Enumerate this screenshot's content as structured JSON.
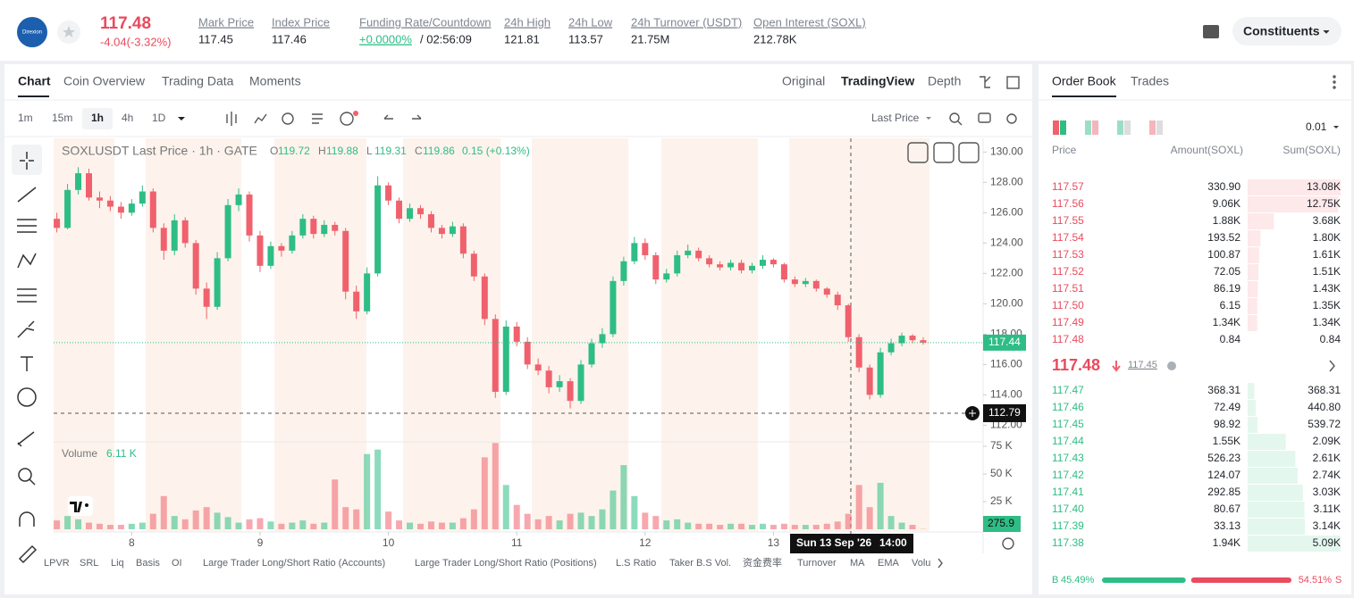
{
  "header": {
    "logo": "Direxion",
    "price": "117.48",
    "change": "-4.04(-3.32%)",
    "stats": [
      {
        "label": "Mark Price",
        "value": "117.45"
      },
      {
        "label": "Index Price",
        "value": "117.46"
      },
      {
        "label": "Funding Rate/Countdown",
        "value": "+0.0000%",
        "extra": "/ 02:56:09"
      },
      {
        "label": "24h High",
        "value": "121.81"
      },
      {
        "label": "24h Low",
        "value": "113.57"
      },
      {
        "label": "24h Turnover (USDT)",
        "value": "21.75M"
      },
      {
        "label": "Open Interest (SOXL)",
        "value": "212.78K"
      }
    ],
    "button": "Constituents"
  },
  "tabs": [
    "Chart",
    "Coin Overview",
    "Trading Data",
    "Moments"
  ],
  "views": [
    "Original",
    "TradingView",
    "Depth"
  ],
  "intervals": [
    "1m",
    "15m",
    "1h",
    "4h",
    "1D"
  ],
  "price_source": "Last Price",
  "indicators": [
    "LPVR",
    "SRL",
    "Liq",
    "Basis",
    "OI",
    "Large Trader Long/Short Ratio (Accounts)",
    "Large Trader Long/Short Ratio (Positions)",
    "L.S Ratio",
    "Taker B.S Vol.",
    "资金费率",
    "Turnover",
    "MA",
    "EMA",
    "Volu"
  ],
  "chart_data": {
    "type": "candlestick",
    "title": "SOXLUSDT Last Price · 1h · GATE",
    "ohlc": [
      {
        "label": "O",
        "value": "119.72"
      },
      {
        "label": "H",
        "value": "119.88"
      },
      {
        "label": "L",
        "value": "119.31"
      },
      {
        "label": "C",
        "value": "119.86"
      }
    ],
    "change": "0.15 (+0.13%)",
    "up_color": "#2ebd85",
    "down_color": "#f0616d",
    "candles": [
      [
        125.6,
        126.0,
        124.7,
        125.0
      ],
      [
        125.0,
        127.9,
        124.9,
        127.5
      ],
      [
        127.5,
        129.0,
        127.2,
        128.6
      ],
      [
        128.6,
        128.9,
        126.8,
        127.0
      ],
      [
        127.0,
        127.4,
        126.3,
        126.8
      ],
      [
        126.8,
        127.1,
        126.1,
        126.4
      ],
      [
        126.4,
        126.7,
        125.6,
        126.0
      ],
      [
        126.0,
        126.9,
        125.8,
        126.6
      ],
      [
        126.6,
        127.8,
        126.4,
        127.4
      ],
      [
        127.4,
        127.6,
        124.7,
        125.0
      ],
      [
        125.0,
        125.3,
        122.9,
        123.5
      ],
      [
        123.5,
        125.9,
        123.2,
        125.5
      ],
      [
        125.5,
        125.7,
        123.7,
        124.0
      ],
      [
        124.0,
        124.2,
        120.6,
        121.0
      ],
      [
        121.0,
        121.4,
        119.0,
        119.8
      ],
      [
        119.8,
        123.4,
        119.6,
        123.0
      ],
      [
        123.0,
        126.9,
        122.8,
        126.5
      ],
      [
        126.5,
        127.6,
        126.1,
        127.2
      ],
      [
        127.2,
        127.4,
        124.1,
        124.5
      ],
      [
        124.5,
        124.8,
        122.1,
        122.5
      ],
      [
        122.5,
        124.1,
        122.3,
        123.8
      ],
      [
        123.8,
        124.0,
        123.1,
        123.5
      ],
      [
        123.5,
        124.8,
        123.3,
        124.5
      ],
      [
        124.5,
        125.9,
        124.3,
        125.6
      ],
      [
        125.6,
        125.8,
        124.3,
        124.6
      ],
      [
        124.6,
        125.5,
        124.4,
        125.2
      ],
      [
        125.2,
        125.4,
        124.5,
        124.8
      ],
      [
        124.8,
        125.0,
        120.3,
        120.8
      ],
      [
        120.8,
        121.2,
        119.0,
        119.5
      ],
      [
        119.5,
        122.4,
        119.3,
        122.0
      ],
      [
        122.0,
        128.4,
        121.8,
        127.8
      ],
      [
        127.8,
        128.0,
        126.5,
        126.8
      ],
      [
        126.8,
        127.0,
        125.3,
        125.6
      ],
      [
        125.6,
        126.6,
        125.4,
        126.3
      ],
      [
        126.3,
        126.5,
        125.6,
        125.9
      ],
      [
        125.9,
        126.1,
        124.7,
        125.0
      ],
      [
        125.0,
        125.2,
        124.3,
        124.6
      ],
      [
        124.6,
        125.4,
        124.4,
        125.1
      ],
      [
        125.1,
        125.3,
        123.0,
        123.3
      ],
      [
        123.3,
        123.5,
        121.5,
        121.8
      ],
      [
        121.8,
        122.0,
        118.6,
        119.0
      ],
      [
        119.0,
        119.3,
        113.8,
        114.2
      ],
      [
        114.2,
        118.9,
        114.0,
        118.5
      ],
      [
        118.5,
        118.8,
        117.2,
        117.5
      ],
      [
        117.5,
        117.8,
        115.7,
        116.0
      ],
      [
        116.0,
        116.4,
        115.3,
        115.6
      ],
      [
        115.6,
        115.9,
        114.1,
        114.5
      ],
      [
        114.5,
        115.3,
        114.2,
        114.9
      ],
      [
        114.9,
        115.1,
        113.1,
        113.6
      ],
      [
        113.6,
        116.3,
        113.4,
        116.0
      ],
      [
        116.0,
        117.7,
        115.8,
        117.4
      ],
      [
        117.4,
        118.4,
        117.1,
        118.0
      ],
      [
        118.0,
        121.8,
        117.8,
        121.5
      ],
      [
        121.5,
        123.1,
        121.2,
        122.8
      ],
      [
        122.8,
        124.4,
        122.6,
        124.0
      ],
      [
        124.0,
        124.3,
        122.9,
        123.2
      ],
      [
        123.2,
        123.4,
        121.3,
        121.6
      ],
      [
        121.6,
        122.3,
        121.4,
        122.0
      ],
      [
        122.0,
        123.5,
        121.8,
        123.2
      ],
      [
        123.2,
        123.9,
        123.0,
        123.5
      ],
      [
        123.5,
        123.7,
        122.8,
        123.0
      ],
      [
        123.0,
        123.2,
        122.4,
        122.6
      ],
      [
        122.6,
        122.8,
        122.2,
        122.4
      ],
      [
        122.4,
        122.9,
        122.2,
        122.7
      ],
      [
        122.7,
        122.9,
        122.0,
        122.2
      ],
      [
        122.2,
        122.7,
        122.0,
        122.5
      ],
      [
        122.5,
        123.2,
        122.3,
        122.9
      ],
      [
        122.9,
        123.0,
        122.4,
        122.6
      ],
      [
        122.6,
        122.7,
        121.4,
        121.6
      ],
      [
        121.6,
        121.8,
        121.1,
        121.3
      ],
      [
        121.3,
        121.7,
        121.1,
        121.5
      ],
      [
        121.5,
        121.6,
        120.8,
        121.0
      ],
      [
        121.0,
        121.1,
        120.4,
        120.6
      ],
      [
        120.6,
        120.8,
        119.6,
        119.9
      ],
      [
        119.9,
        120.0,
        117.5,
        117.8
      ],
      [
        117.8,
        118.0,
        115.5,
        115.8
      ],
      [
        115.8,
        116.0,
        113.7,
        114.0
      ],
      [
        114.0,
        117.1,
        113.8,
        116.8
      ],
      [
        116.8,
        117.7,
        116.6,
        117.4
      ],
      [
        117.4,
        118.1,
        117.2,
        117.9
      ],
      [
        117.9,
        118.0,
        117.4,
        117.6
      ],
      [
        117.6,
        117.8,
        117.3,
        117.44
      ]
    ],
    "volumes": [
      8000,
      12000,
      9000,
      6000,
      5000,
      4000,
      4000,
      5000,
      6000,
      14000,
      30000,
      12000,
      9000,
      17000,
      20000,
      15000,
      11000,
      6000,
      9000,
      10000,
      7000,
      5000,
      6000,
      8000,
      5000,
      6000,
      45000,
      20000,
      18000,
      68000,
      72000,
      16000,
      8000,
      6000,
      5000,
      7000,
      6000,
      6000,
      10000,
      18000,
      65000,
      78000,
      40000,
      22000,
      14000,
      9000,
      12000,
      8000,
      14000,
      15000,
      12000,
      18000,
      35000,
      58000,
      30000,
      15000,
      12000,
      8000,
      9000,
      6000,
      5000,
      5000,
      4000,
      5000,
      5000,
      4000,
      5000,
      4000,
      5000,
      4000,
      4000,
      4000,
      5000,
      7000,
      14000,
      40000,
      20000,
      42000,
      12000,
      6000,
      4000,
      275.9
    ],
    "xlim": [
      -0.3,
      86.6
    ],
    "xticks": [
      {
        "value": 7,
        "label": "8"
      },
      {
        "value": 19,
        "label": "9"
      },
      {
        "value": 31,
        "label": "10"
      },
      {
        "value": 43,
        "label": "11"
      },
      {
        "value": 55,
        "label": "12"
      },
      {
        "value": 67,
        "label": "13"
      }
    ],
    "ylim": [
      111.2,
      130.9
    ],
    "yticks": [
      {
        "value": 112,
        "label": "112.00"
      },
      {
        "value": 114,
        "label": "114.00"
      },
      {
        "value": 116,
        "label": "116.00"
      },
      {
        "value": 118,
        "label": "118.00"
      },
      {
        "value": 120,
        "label": "120.00"
      },
      {
        "value": 122,
        "label": "122.00"
      },
      {
        "value": 124,
        "label": "124.00"
      },
      {
        "value": 126,
        "label": "126.00"
      },
      {
        "value": 128,
        "label": "128.00"
      },
      {
        "value": 130,
        "label": "130.00"
      }
    ],
    "volume_title": "Volume",
    "volume_value": "6.11 K",
    "vol_ylim": [
      0,
      75000
    ],
    "vol_yticks": [
      {
        "value": 25000,
        "label": "25 K"
      },
      {
        "value": 50000,
        "label": "50 K"
      },
      {
        "value": 75000,
        "label": "75 K"
      }
    ],
    "crosshair": {
      "price": 112.79,
      "date": "Sun 13 Sep '26",
      "time": "14:00"
    }
  },
  "order_book": {
    "tabs": [
      "Order Book",
      "Trades"
    ],
    "precision": "0.01",
    "columns": [
      "Price",
      "Amount(SOXL)",
      "Sum(SOXL)"
    ],
    "asks": [
      {
        "price": "117.57",
        "amount": "330.90",
        "sum": {
          "value": 13080,
          "label": "13.08K"
        }
      },
      {
        "price": "117.56",
        "amount": "9.06K",
        "sum": {
          "value": 12750,
          "label": "12.75K"
        }
      },
      {
        "price": "117.55",
        "amount": "1.88K",
        "sum": {
          "value": 3680,
          "label": "3.68K"
        }
      },
      {
        "price": "117.54",
        "amount": "193.52",
        "sum": {
          "value": 1800,
          "label": "1.80K"
        }
      },
      {
        "price": "117.53",
        "amount": "100.87",
        "sum": {
          "value": 1610,
          "label": "1.61K"
        }
      },
      {
        "price": "117.52",
        "amount": "72.05",
        "sum": {
          "value": 1510,
          "label": "1.51K"
        }
      },
      {
        "price": "117.51",
        "amount": "86.19",
        "sum": {
          "value": 1430,
          "label": "1.43K"
        }
      },
      {
        "price": "117.50",
        "amount": "6.15",
        "sum": {
          "value": 1350,
          "label": "1.35K"
        }
      },
      {
        "price": "117.49",
        "amount": "1.34K",
        "sum": {
          "value": 1340,
          "label": "1.34K"
        }
      },
      {
        "price": "117.48",
        "amount": "0.84",
        "sum": 0.84
      }
    ],
    "last_price": "117.48",
    "mark_price": "117.45",
    "bids": [
      {
        "price": "117.47",
        "amount": "368.31",
        "sum": 368.31
      },
      {
        "price": "117.46",
        "amount": "72.49",
        "sum": {
          "value": 440.8,
          "label": "440.80"
        }
      },
      {
        "price": "117.45",
        "amount": "98.92",
        "sum": 539.72
      },
      {
        "price": "117.44",
        "amount": "1.55K",
        "sum": {
          "value": 2090,
          "label": "2.09K"
        }
      },
      {
        "price": "117.43",
        "amount": "526.23",
        "sum": {
          "value": 2610,
          "label": "2.61K"
        }
      },
      {
        "price": "117.42",
        "amount": "124.07",
        "sum": {
          "value": 2740,
          "label": "2.74K"
        }
      },
      {
        "price": "117.41",
        "amount": "292.85",
        "sum": {
          "value": 3030,
          "label": "3.03K"
        }
      },
      {
        "price": "117.40",
        "amount": "80.67",
        "sum": {
          "value": 3110,
          "label": "3.11K"
        }
      },
      {
        "price": "117.39",
        "amount": "33.13",
        "sum": {
          "value": 3140,
          "label": "3.14K"
        }
      },
      {
        "price": "117.38",
        "amount": "1.94K",
        "sum": {
          "value": 5090,
          "label": "5.09K"
        }
      }
    ],
    "ratio": {
      "buy_label": "B",
      "buy": {
        "value": 45.49,
        "label": "45.49%"
      },
      "sell": {
        "value": 54.51,
        "label": "54.51%"
      },
      "sell_label": "S"
    }
  }
}
